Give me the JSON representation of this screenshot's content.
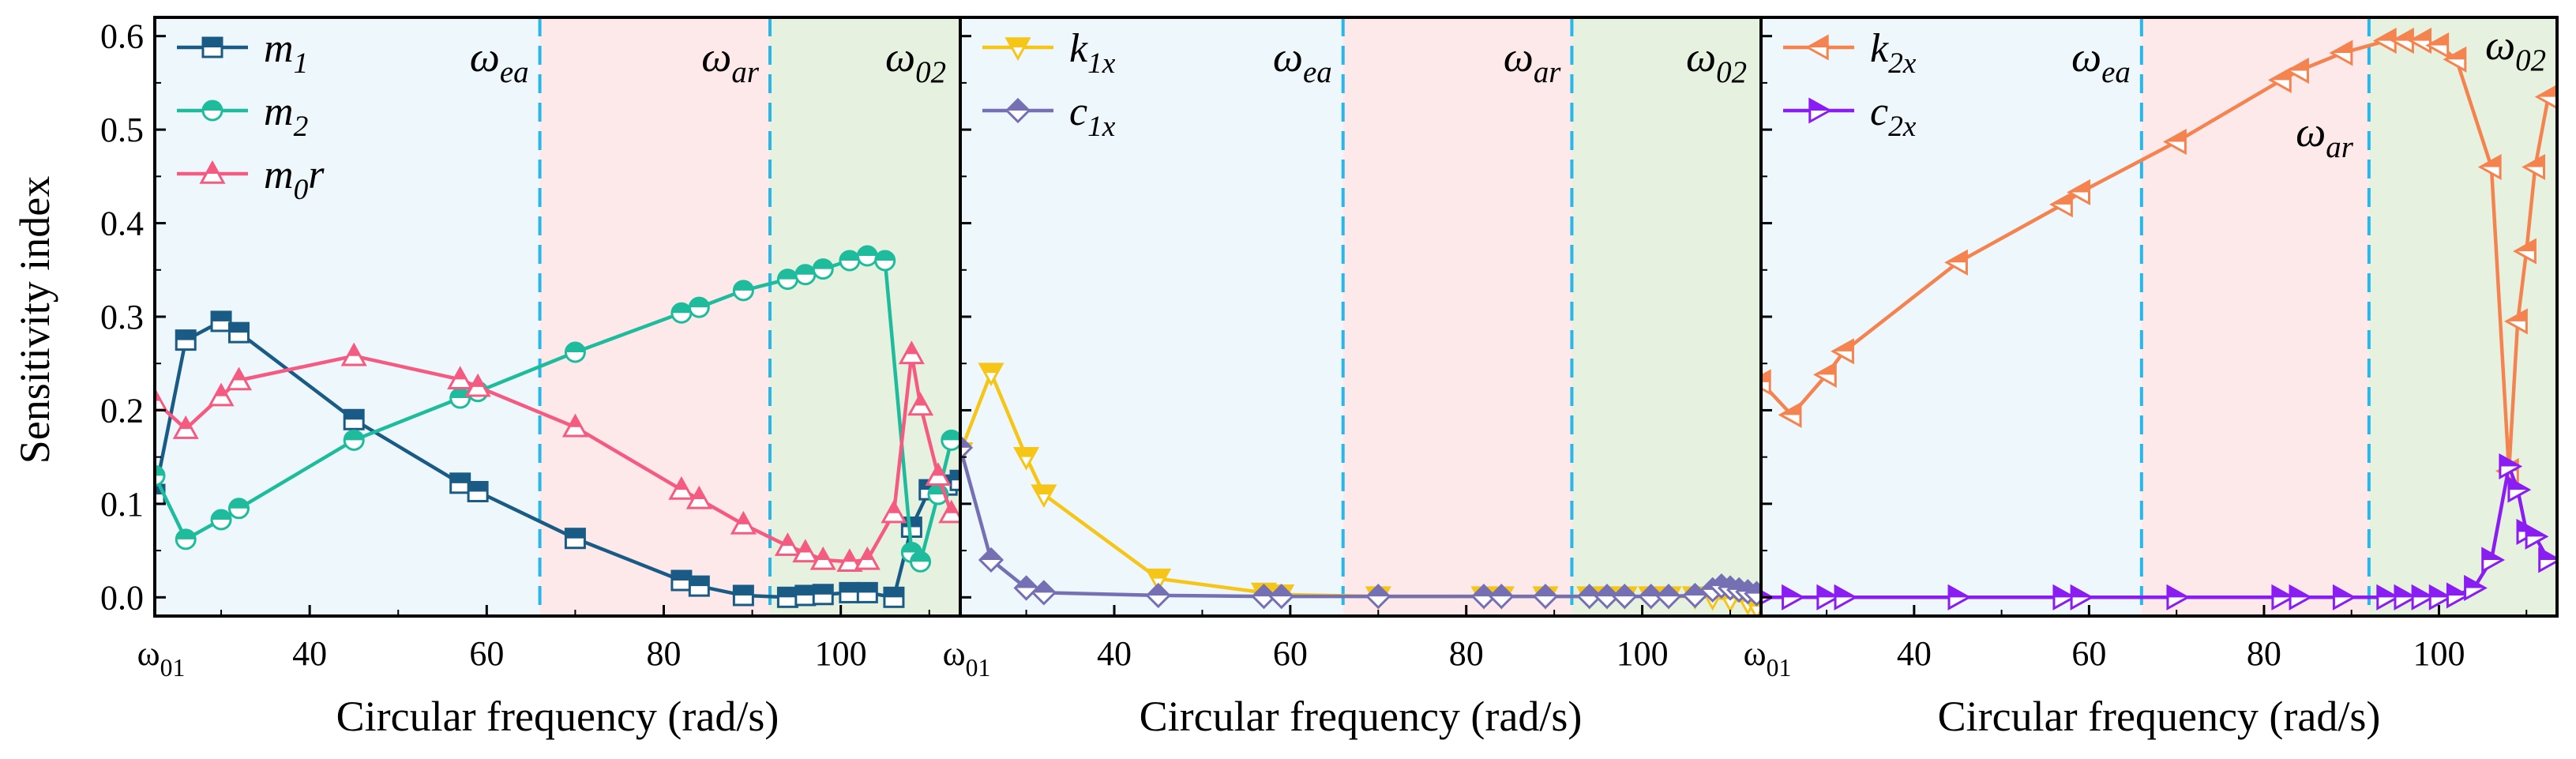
{
  "chart_data": {
    "type": "line",
    "ylabel": "Sensitivity index",
    "ylim": [
      -0.02,
      0.62
    ],
    "yticks": [
      0.0,
      0.1,
      0.2,
      0.3,
      0.4,
      0.5,
      0.6
    ],
    "ytick_labels": [
      "0.0",
      "0.1",
      "0.2",
      "0.3",
      "0.4",
      "0.5",
      "0.6"
    ],
    "region_colors": {
      "ea": "#edf7fc",
      "ar": "#fde9ea",
      "o2": "#e6f2df"
    },
    "boundary_color": "#29b6e8",
    "panels": [
      {
        "xlabel": "Circular frequency (rad/s)",
        "xlim": [
          22.5,
          113.5
        ],
        "xticks": [
          22.5,
          40,
          60,
          80,
          100
        ],
        "xtick_labels": [
          "ω01",
          "40",
          "60",
          "80",
          "100"
        ],
        "xtick_label_parts": [
          {
            "main": "ω",
            "sub": "01"
          },
          {
            "main": "40",
            "sub": ""
          },
          {
            "main": "60",
            "sub": ""
          },
          {
            "main": "80",
            "sub": ""
          },
          {
            "main": "100",
            "sub": ""
          }
        ],
        "boundaries": [
          66,
          92
        ],
        "region_labels": [
          {
            "main": "ω",
            "sub": "ea",
            "text": "ωea"
          },
          {
            "main": "ω",
            "sub": "ar",
            "text": "ωar"
          },
          {
            "main": "ω",
            "sub": "02",
            "text": "ω02"
          }
        ],
        "legend_position": "upper-left",
        "series": [
          {
            "name": "m1",
            "label_main": "m",
            "label_sub": "1",
            "label_suffix": "",
            "color": "#1a5b86",
            "marker": "square",
            "x": [
              22.5,
              26,
              30,
              32,
              45,
              57,
              59,
              70,
              82,
              84,
              89,
              94,
              96,
              98,
              101,
              103,
              106,
              108,
              110,
              112,
              113.5
            ],
            "y": [
              0.11,
              0.275,
              0.295,
              0.283,
              0.19,
              0.122,
              0.113,
              0.063,
              0.018,
              0.012,
              0.002,
              0.0,
              0.002,
              0.003,
              0.005,
              0.005,
              0.0,
              0.075,
              0.115,
              0.12,
              0.125
            ]
          },
          {
            "name": "m2",
            "label_main": "m",
            "label_sub": "2",
            "label_suffix": "",
            "color": "#1ebb9c",
            "marker": "circle",
            "x": [
              22.5,
              26,
              30,
              32,
              45,
              57,
              59,
              70,
              82,
              84,
              89,
              94,
              96,
              98,
              101,
              103,
              105,
              108,
              109,
              111,
              112.5
            ],
            "y": [
              0.13,
              0.062,
              0.083,
              0.095,
              0.168,
              0.213,
              0.22,
              0.262,
              0.304,
              0.31,
              0.328,
              0.34,
              0.345,
              0.351,
              0.36,
              0.365,
              0.36,
              0.048,
              0.038,
              0.11,
              0.168
            ]
          },
          {
            "name": "m0r",
            "label_main": "m",
            "label_sub": "0",
            "label_suffix": "r",
            "color": "#f55a80",
            "marker": "triangle-up",
            "x": [
              22.5,
              26,
              30,
              32,
              45,
              57,
              59,
              70,
              82,
              84,
              89,
              94,
              96,
              98,
              101,
              103,
              106,
              108,
              109,
              111,
              112.5
            ],
            "y": [
              0.21,
              0.18,
              0.215,
              0.232,
              0.258,
              0.233,
              0.225,
              0.182,
              0.115,
              0.105,
              0.078,
              0.055,
              0.048,
              0.04,
              0.038,
              0.04,
              0.09,
              0.26,
              0.205,
              0.13,
              0.09
            ]
          }
        ]
      },
      {
        "xlabel": "Circular frequency (rad/s)",
        "xlim": [
          22.5,
          113.5
        ],
        "xticks": [
          22.5,
          40,
          60,
          80,
          100
        ],
        "xtick_labels": [
          "ω01",
          "40",
          "60",
          "80",
          "100"
        ],
        "xtick_label_parts": [
          {
            "main": "ω",
            "sub": "01"
          },
          {
            "main": "40",
            "sub": ""
          },
          {
            "main": "60",
            "sub": ""
          },
          {
            "main": "80",
            "sub": ""
          },
          {
            "main": "100",
            "sub": ""
          }
        ],
        "boundaries": [
          66,
          92
        ],
        "region_labels": [
          {
            "main": "ω",
            "sub": "ea",
            "text": "ωea"
          },
          {
            "main": "ω",
            "sub": "ar",
            "text": "ωar"
          },
          {
            "main": "ω",
            "sub": "02",
            "text": "ω02"
          }
        ],
        "legend_position": "upper-left",
        "series": [
          {
            "name": "k1x",
            "label_main": "k",
            "label_sub": "1x",
            "label_suffix": "",
            "color": "#f5c518",
            "marker": "triangle-down",
            "x": [
              22.5,
              26,
              30,
              32,
              45,
              57,
              59,
              70,
              82,
              84,
              89,
              94,
              96,
              98,
              101,
              103,
              106,
              108,
              110,
              112,
              113
            ],
            "y": [
              0.155,
              0.24,
              0.15,
              0.11,
              0.02,
              0.005,
              0.003,
              0.001,
              0.001,
              0.001,
              0.001,
              0.001,
              0.001,
              0.001,
              0.001,
              0.001,
              0.001,
              0.0,
              -0.002,
              -0.005,
              -0.01
            ]
          },
          {
            "name": "c1x",
            "label_main": "c",
            "label_sub": "1x",
            "label_suffix": "",
            "color": "#7570b3",
            "marker": "diamond",
            "x": [
              22.5,
              26,
              30,
              32,
              45,
              57,
              59,
              70,
              82,
              84,
              89,
              94,
              96,
              98,
              101,
              103,
              106,
              108,
              109,
              110,
              111,
              112,
              113
            ],
            "y": [
              0.16,
              0.04,
              0.01,
              0.005,
              0.002,
              0.001,
              0.001,
              0.001,
              0.001,
              0.001,
              0.001,
              0.001,
              0.001,
              0.001,
              0.001,
              0.001,
              0.002,
              0.008,
              0.012,
              0.01,
              0.008,
              0.006,
              0.004
            ]
          }
        ]
      },
      {
        "xlabel": "Circular frequency (rad/s)",
        "xlim": [
          22.5,
          113.5
        ],
        "xticks": [
          22.5,
          40,
          60,
          80,
          100
        ],
        "xtick_labels": [
          "ω01",
          "40",
          "60",
          "80",
          "100"
        ],
        "xtick_label_parts": [
          {
            "main": "ω",
            "sub": "01"
          },
          {
            "main": "40",
            "sub": ""
          },
          {
            "main": "60",
            "sub": ""
          },
          {
            "main": "80",
            "sub": ""
          },
          {
            "main": "100",
            "sub": ""
          }
        ],
        "boundaries": [
          66,
          92
        ],
        "region_labels": [
          {
            "main": "ω",
            "sub": "ea",
            "text": "ωea"
          },
          {
            "main": "ω",
            "sub": "ar",
            "text": "ωar"
          },
          {
            "main": "ω",
            "sub": "02",
            "text": "ω02"
          }
        ],
        "legend_position": "upper-left",
        "series": [
          {
            "name": "k2x",
            "label_main": "k",
            "label_sub": "2x",
            "label_suffix": "",
            "color": "#f4834f",
            "marker": "triangle-left",
            "x": [
              22.5,
              26,
              30,
              32,
              45,
              57,
              59,
              70,
              82,
              84,
              89,
              94,
              96,
              98,
              100,
              102,
              106,
              108,
              109,
              110,
              111,
              112.5
            ],
            "y": [
              0.23,
              0.195,
              0.238,
              0.263,
              0.358,
              0.42,
              0.433,
              0.487,
              0.553,
              0.563,
              0.582,
              0.595,
              0.595,
              0.595,
              0.59,
              0.575,
              0.46,
              0.135,
              0.295,
              0.37,
              0.46,
              0.535
            ]
          },
          {
            "name": "c2x",
            "label_main": "c",
            "label_sub": "2x",
            "label_suffix": "",
            "color": "#8a1df2",
            "marker": "triangle-right",
            "x": [
              22.5,
              26,
              30,
              32,
              45,
              57,
              59,
              70,
              82,
              84,
              89,
              94,
              96,
              98,
              100,
              102,
              104,
              106,
              108,
              109,
              110,
              111,
              112.5
            ],
            "y": [
              0.0,
              0.0,
              0.0,
              0.0,
              0.0,
              0.0,
              0.0,
              0.0,
              0.0,
              0.0,
              0.0,
              0.0,
              0.0,
              0.0,
              0.0,
              0.002,
              0.01,
              0.04,
              0.14,
              0.115,
              0.07,
              0.065,
              0.04
            ]
          }
        ]
      }
    ]
  }
}
